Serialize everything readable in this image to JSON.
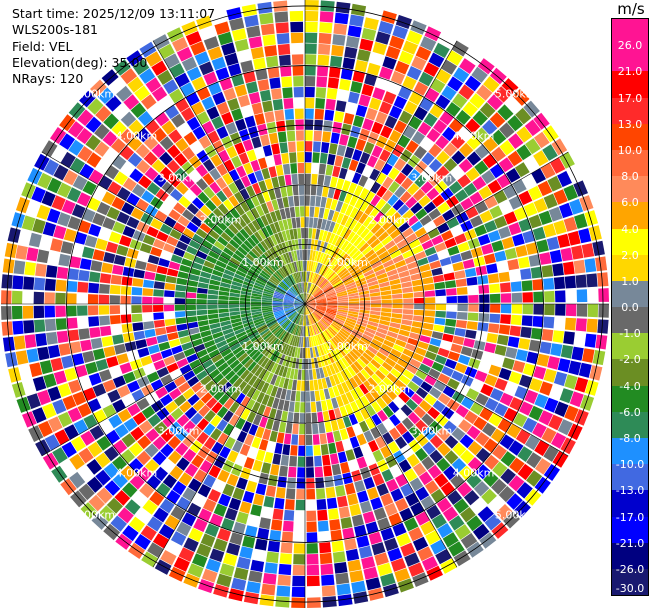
{
  "info": {
    "start_time": "Start time: 2025/12/09 13:11:07",
    "instrument": "WLS200s-181",
    "field": "Field: VEL",
    "elevation": "Elevation(deg): 35.00",
    "nrays": "NRays: 120"
  },
  "colorbar": {
    "unit": "m/s",
    "segments": [
      {
        "color": "#ff1493",
        "label": "26.0"
      },
      {
        "color": "#ff1493",
        "label": "21.0"
      },
      {
        "color": "#ff0000",
        "label": "17.0"
      },
      {
        "color": "#ff2a2a",
        "label": "13.0"
      },
      {
        "color": "#ff4500",
        "label": "10.0"
      },
      {
        "color": "#ff6a3a",
        "label": "8.0"
      },
      {
        "color": "#ff8a5a",
        "label": "6.0"
      },
      {
        "color": "#ffa500",
        "label": "4.0"
      },
      {
        "color": "#ffff00",
        "label": "2.0"
      },
      {
        "color": "#ffd700",
        "label": "1.0"
      },
      {
        "color": "#778899",
        "label": "0.0"
      },
      {
        "color": "#696969",
        "label": "-1.0"
      },
      {
        "color": "#9acd32",
        "label": "-2.0"
      },
      {
        "color": "#6b8e23",
        "label": "-4.0"
      },
      {
        "color": "#228b22",
        "label": "-6.0"
      },
      {
        "color": "#2e8b57",
        "label": "-8.0"
      },
      {
        "color": "#1e90ff",
        "label": "-10.0"
      },
      {
        "color": "#4169e1",
        "label": "-13.0"
      },
      {
        "color": "#0000cd",
        "label": "-17.0"
      },
      {
        "color": "#0000ff",
        "label": "-21.0"
      },
      {
        "color": "#000080",
        "label": "-26.0"
      },
      {
        "color": "#191970",
        "label": "-30.0"
      }
    ]
  },
  "ranges": [
    {
      "label": "1.00km"
    },
    {
      "label": "2.00km"
    },
    {
      "label": "3.00km"
    },
    {
      "label": "4.00km"
    },
    {
      "label": "5.00km"
    }
  ]
}
